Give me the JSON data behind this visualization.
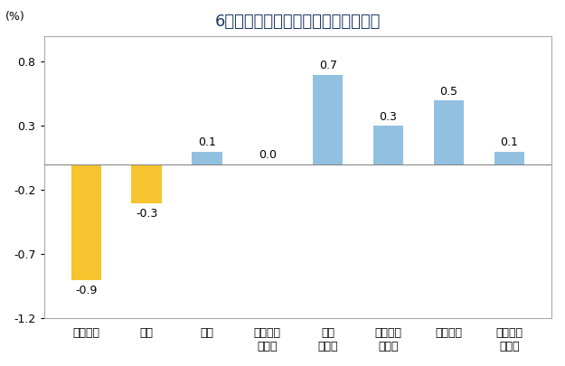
{
  "title": "6月份居民消费价格分类别环比涨跌幅",
  "ylabel": "(%)",
  "categories": [
    "食品烟酒",
    "衣着",
    "居住",
    "生活用品\n及服务",
    "交通\n和通信",
    "教育文化\n和娱乐",
    "医疗保健",
    "其他用品\n和服务"
  ],
  "values": [
    -0.9,
    -0.3,
    0.1,
    0.0,
    0.7,
    0.3,
    0.5,
    0.1
  ],
  "bar_colors_positive": "#92c0e0",
  "bar_colors_negative": "#f5c42e",
  "ylim": [
    -1.2,
    1.0
  ],
  "yticks": [
    -1.2,
    -0.7,
    -0.2,
    0.3,
    0.8
  ],
  "background_color": "#ffffff",
  "plot_bg_color": "#ffffff",
  "title_fontsize": 13,
  "label_fontsize": 9,
  "tick_fontsize": 9,
  "bar_width": 0.5,
  "spine_color": "#aaaaaa",
  "zero_line_color": "#888888",
  "title_color": "#1f3864"
}
